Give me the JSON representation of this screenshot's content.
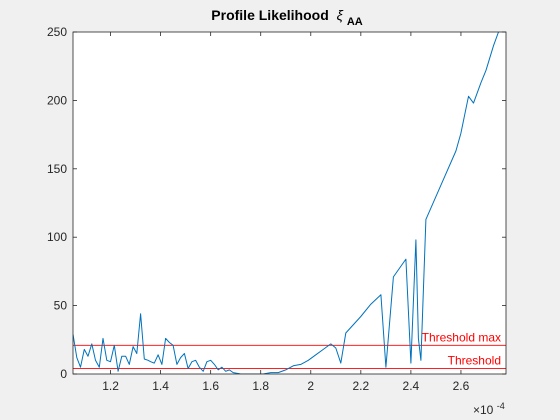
{
  "chart_data": {
    "type": "line",
    "title": "Profile Likelihood",
    "title_symbol": "ξ",
    "title_subscript": "AA",
    "xlabel": "",
    "ylabel": "",
    "x_exponent_label": "×10",
    "x_exponent_power": "-4",
    "xlim": [
      1.05,
      2.78
    ],
    "ylim": [
      0,
      250
    ],
    "xticks": [
      1.2,
      1.4,
      1.6,
      1.8,
      2.0,
      2.2,
      2.4,
      2.6
    ],
    "xtick_labels": [
      "1.2",
      "1.4",
      "1.6",
      "1.8",
      "2",
      "2.2",
      "2.4",
      "2.6"
    ],
    "yticks": [
      0,
      50,
      100,
      150,
      200,
      250
    ],
    "ytick_labels": [
      "0",
      "50",
      "100",
      "150",
      "200",
      "250"
    ],
    "grid": false,
    "series": [
      {
        "color": "#0072bd",
        "x": [
          1.05,
          1.065,
          1.08,
          1.095,
          1.11,
          1.125,
          1.14,
          1.155,
          1.17,
          1.185,
          1.2,
          1.215,
          1.23,
          1.245,
          1.26,
          1.275,
          1.29,
          1.305,
          1.32,
          1.335,
          1.35,
          1.36,
          1.375,
          1.39,
          1.405,
          1.42,
          1.435,
          1.45,
          1.465,
          1.48,
          1.495,
          1.51,
          1.525,
          1.54,
          1.555,
          1.57,
          1.585,
          1.6,
          1.615,
          1.63,
          1.645,
          1.66,
          1.675,
          1.69,
          1.72,
          1.75,
          1.78,
          1.81,
          1.84,
          1.87,
          1.9,
          1.93,
          1.96,
          1.99,
          2.02,
          2.05,
          2.08,
          2.1,
          2.12,
          2.14,
          2.2,
          2.24,
          2.28,
          2.3,
          2.33,
          2.38,
          2.4,
          2.42,
          2.43,
          2.44,
          2.46,
          2.52,
          2.58,
          2.6,
          2.63,
          2.65,
          2.68,
          2.7,
          2.73,
          2.75,
          2.78
        ],
        "y": [
          29,
          12,
          5,
          18,
          13,
          22,
          10,
          5,
          26,
          10,
          9,
          21,
          2,
          13,
          13,
          7,
          20,
          15,
          44,
          11,
          10,
          9,
          8,
          14,
          7,
          26,
          23,
          21,
          7,
          12,
          15,
          4,
          9,
          10,
          5,
          2,
          9,
          10,
          7,
          3,
          5,
          2,
          3,
          1,
          0,
          0,
          0,
          0,
          1,
          1,
          3,
          6,
          7,
          10,
          14,
          18,
          22,
          19,
          8,
          30,
          42,
          51,
          58,
          5,
          71,
          84,
          8,
          98,
          26,
          10,
          113,
          138,
          163,
          176,
          203,
          198,
          213,
          222,
          240,
          250,
          255
        ]
      }
    ],
    "reference_lines": [
      {
        "name": "Threshold max",
        "y": 21,
        "color": "#ff0000"
      },
      {
        "name": "Threshold",
        "y": 4,
        "color": "#ff0000"
      }
    ]
  }
}
